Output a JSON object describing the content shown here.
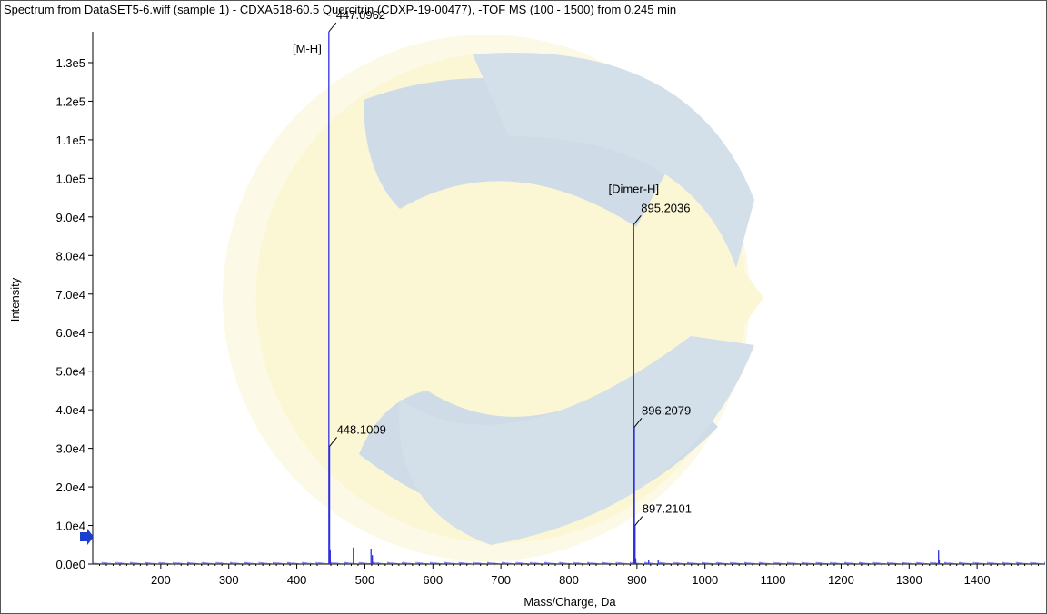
{
  "window": {
    "title": "Spectrum from DataSET5-6.wiff (sample 1) - CDXA518-60.5 Quercitrin (CDXP-19-00477), -TOF MS (100 - 1500) from 0.245 min"
  },
  "colors": {
    "peak": "#3030e0",
    "marker": "#1a3fd0",
    "watermark_blue": "#c9d9e6",
    "watermark_yellow": "#fbf8dc"
  },
  "chart_data": {
    "type": "bar",
    "title": "Spectrum from DataSET5-6.wiff (sample 1) - CDXA518-60.5 Quercitrin (CDXP-19-00477), -TOF MS (100 - 1500) from 0.245 min",
    "xlabel": "Mass/Charge, Da",
    "ylabel": "Intensity",
    "xlim": [
      100,
      1500
    ],
    "ylim": [
      0,
      138000
    ],
    "x_ticks": [
      200,
      300,
      400,
      500,
      600,
      700,
      800,
      900,
      1000,
      1100,
      1200,
      1300,
      1400
    ],
    "y_ticks": [
      {
        "value": 0,
        "label": "0.0e0"
      },
      {
        "value": 10000,
        "label": "1.0e4"
      },
      {
        "value": 20000,
        "label": "2.0e4"
      },
      {
        "value": 30000,
        "label": "3.0e4"
      },
      {
        "value": 40000,
        "label": "4.0e4"
      },
      {
        "value": 50000,
        "label": "5.0e4"
      },
      {
        "value": 60000,
        "label": "6.0e4"
      },
      {
        "value": 70000,
        "label": "7.0e4"
      },
      {
        "value": 80000,
        "label": "8.0e4"
      },
      {
        "value": 90000,
        "label": "9.0e4"
      },
      {
        "value": 100000,
        "label": "1.0e5"
      },
      {
        "value": 110000,
        "label": "1.1e5"
      },
      {
        "value": 120000,
        "label": "1.2e5"
      },
      {
        "value": 130000,
        "label": "1.3e5"
      }
    ],
    "grid": false,
    "peaks": [
      {
        "mz": 447.0962,
        "intensity": 138000
      },
      {
        "mz": 448.1009,
        "intensity": 30500
      },
      {
        "mz": 449.1,
        "intensity": 3800
      },
      {
        "mz": 483.1,
        "intensity": 4300
      },
      {
        "mz": 509.1,
        "intensity": 4000
      },
      {
        "mz": 511.0,
        "intensity": 2300
      },
      {
        "mz": 895.2036,
        "intensity": 88000
      },
      {
        "mz": 896.2079,
        "intensity": 35500
      },
      {
        "mz": 897.2101,
        "intensity": 10000
      },
      {
        "mz": 898.2,
        "intensity": 1500
      },
      {
        "mz": 917.2,
        "intensity": 1000
      },
      {
        "mz": 931.2,
        "intensity": 1100
      },
      {
        "mz": 1343.3,
        "intensity": 3500
      },
      {
        "mz": 1344.3,
        "intensity": 1200
      }
    ],
    "annotations": [
      {
        "text": "447.0962",
        "mz": 447.0962
      },
      {
        "text": "448.1009",
        "mz": 448.1009
      },
      {
        "text": "895.2036",
        "mz": 895.2036
      },
      {
        "text": "896.2079",
        "mz": 896.2079
      },
      {
        "text": "897.2101",
        "mz": 897.2101
      }
    ],
    "ion_labels": [
      {
        "text": "[M-H]",
        "mz": 447.0962
      },
      {
        "text": "[Dimer-H]",
        "mz": 895.2036
      }
    ]
  }
}
